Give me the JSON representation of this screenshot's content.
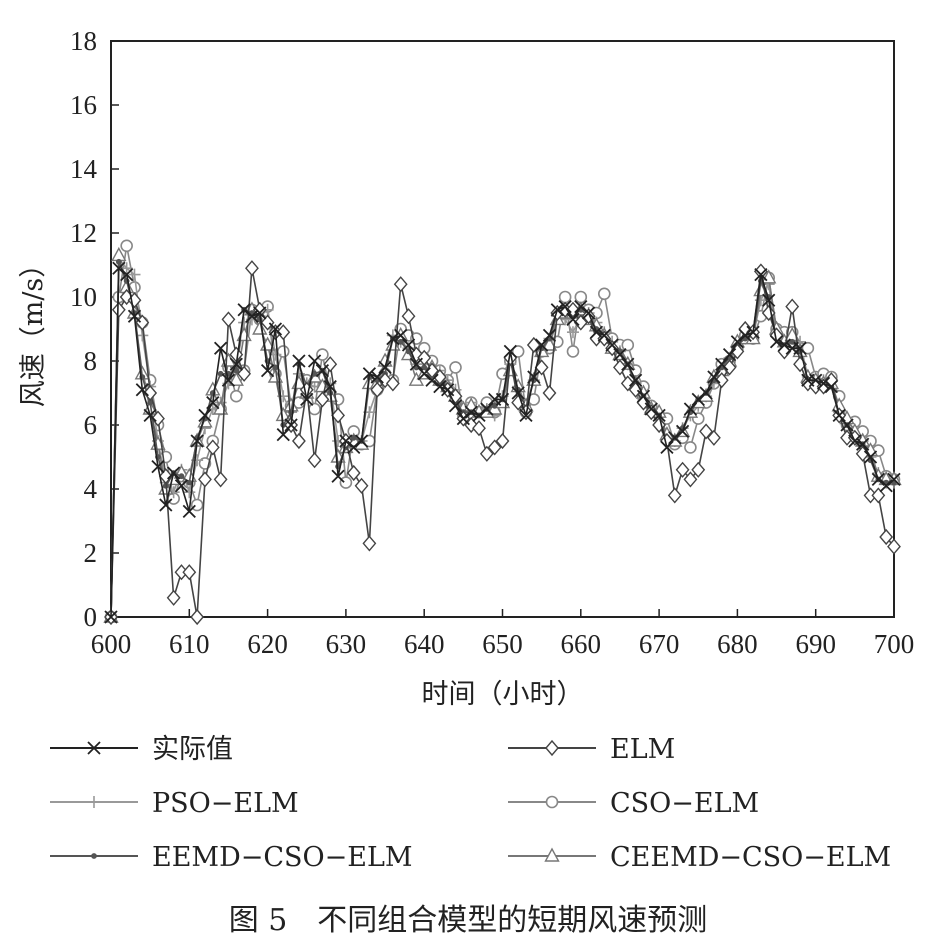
{
  "figure": {
    "caption": "图 5　不同组合模型的短期风速预测"
  },
  "chart_data": {
    "type": "line",
    "xlabel": "时间（小时）",
    "ylabel": "风速（m/s）",
    "xlim": [
      600,
      700
    ],
    "ylim": [
      0,
      18
    ],
    "xticks": [
      600,
      610,
      620,
      630,
      640,
      650,
      660,
      670,
      680,
      690,
      700
    ],
    "yticks": [
      0,
      2,
      4,
      6,
      8,
      10,
      12,
      14,
      16,
      18
    ],
    "grid": false,
    "legend_position": "bottom",
    "x": [
      600,
      601,
      602,
      603,
      604,
      605,
      606,
      607,
      608,
      609,
      610,
      611,
      612,
      613,
      614,
      615,
      616,
      617,
      618,
      619,
      620,
      621,
      622,
      623,
      624,
      625,
      626,
      627,
      628,
      629,
      630,
      631,
      632,
      633,
      634,
      635,
      636,
      637,
      638,
      639,
      640,
      641,
      642,
      643,
      644,
      645,
      646,
      647,
      648,
      649,
      650,
      651,
      652,
      653,
      654,
      655,
      656,
      657,
      658,
      659,
      660,
      661,
      662,
      663,
      664,
      665,
      666,
      667,
      668,
      669,
      670,
      671,
      672,
      673,
      674,
      675,
      676,
      677,
      678,
      679,
      680,
      681,
      682,
      683,
      684,
      685,
      686,
      687,
      688,
      689,
      690,
      691,
      692,
      693,
      694,
      695,
      696,
      697,
      698,
      699,
      700
    ],
    "series": [
      {
        "name": "实际值",
        "color": "#222222",
        "marker": "x",
        "values": [
          0,
          10.9,
          10.7,
          9.4,
          7.1,
          6.3,
          4.7,
          3.5,
          4.5,
          4.1,
          3.3,
          5.5,
          6.3,
          6.7,
          8.4,
          7.4,
          7.9,
          9.6,
          9.4,
          9.5,
          7.7,
          9.0,
          5.7,
          6.0,
          8.0,
          6.8,
          8.0,
          7.7,
          7.2,
          4.4,
          5.5,
          5.3,
          5.5,
          7.6,
          7.5,
          7.8,
          8.7,
          8.8,
          8.5,
          7.9,
          7.6,
          7.4,
          7.2,
          7.1,
          6.6,
          6.2,
          6.4,
          6.3,
          6.5,
          6.8,
          6.8,
          8.3,
          7.0,
          6.3,
          7.5,
          8.5,
          8.8,
          9.6,
          9.7,
          9.3,
          9.7,
          9.5,
          8.9,
          8.8,
          8.5,
          8.2,
          7.9,
          7.4,
          6.9,
          6.5,
          6.3,
          5.3,
          5.6,
          5.8,
          6.5,
          6.8,
          7.0,
          7.5,
          7.9,
          8.2,
          8.6,
          8.8,
          8.9,
          10.7,
          9.9,
          8.6,
          8.5,
          8.4,
          8.4,
          7.4,
          7.4,
          7.3,
          7.2,
          6.3,
          6.0,
          5.5,
          5.4,
          5.0,
          4.3,
          4.1,
          4.3
        ]
      },
      {
        "name": "ELM",
        "color": "#444444",
        "marker": "diamond",
        "values": [
          0,
          9.6,
          10.0,
          9.9,
          9.2,
          7.0,
          6.2,
          4.4,
          0.6,
          1.4,
          1.4,
          0.0,
          4.3,
          5.3,
          4.3,
          9.3,
          8.2,
          7.6,
          10.9,
          9.6,
          9.2,
          8.9,
          8.9,
          6.0,
          5.5,
          7.1,
          4.9,
          6.8,
          7.9,
          6.3,
          5.5,
          4.5,
          4.1,
          2.3,
          7.1,
          7.4,
          7.3,
          10.4,
          9.4,
          8.2,
          8.1,
          7.7,
          7.5,
          7.1,
          6.9,
          6.2,
          6.0,
          5.9,
          5.1,
          5.3,
          5.5,
          8.1,
          6.7,
          6.4,
          8.5,
          7.8,
          7.0,
          9.5,
          9.6,
          9.6,
          9.2,
          9.4,
          8.7,
          8.7,
          8.4,
          7.8,
          7.3,
          7.1,
          6.7,
          6.4,
          6.0,
          5.5,
          3.8,
          4.6,
          4.3,
          4.6,
          5.8,
          5.6,
          7.4,
          7.8,
          8.3,
          9.0,
          8.9,
          10.8,
          9.5,
          8.8,
          8.3,
          9.7,
          7.9,
          7.3,
          7.2,
          7.2,
          7.4,
          6.3,
          5.6,
          5.6,
          5.1,
          3.8,
          3.8,
          2.5,
          2.2
        ]
      },
      {
        "name": "PSO−ELM",
        "color": "#999999",
        "marker": "plus",
        "values": [
          0,
          11.2,
          10.9,
          10.7,
          8.8,
          7.2,
          5.5,
          4.2,
          3.9,
          4.6,
          3.9,
          4.9,
          5.9,
          6.5,
          6.7,
          7.3,
          7.8,
          9.2,
          9.3,
          9.4,
          9.6,
          8.2,
          6.9,
          6.4,
          7.6,
          7.3,
          7.2,
          7.2,
          7.3,
          5.5,
          5.3,
          5.5,
          5.5,
          6.4,
          7.1,
          7.9,
          8.8,
          8.6,
          8.4,
          7.9,
          7.9,
          7.5,
          7.7,
          7.4,
          7.1,
          6.3,
          6.7,
          6.4,
          6.5,
          6.3,
          6.9,
          7.9,
          7.2,
          6.5,
          7.4,
          8.3,
          8.7,
          9.4,
          9.3,
          8.9,
          9.4,
          9.5,
          9.2,
          8.9,
          8.6,
          8.3,
          7.9,
          7.3,
          6.8,
          6.4,
          6.3,
          5.5,
          5.5,
          5.9,
          6.3,
          6.6,
          6.9,
          7.3,
          7.7,
          8.1,
          8.5,
          8.7,
          8.8,
          9.9,
          10.4,
          8.8,
          8.6,
          8.7,
          8.6,
          7.5,
          7.3,
          7.4,
          7.4,
          6.4,
          6.1,
          5.6,
          5.5,
          5.0,
          4.5,
          4.2,
          4.2
        ]
      },
      {
        "name": "CSO−ELM",
        "color": "#888888",
        "marker": "circle",
        "values": [
          0,
          10.0,
          11.6,
          10.3,
          9.2,
          7.4,
          6.0,
          5.0,
          3.7,
          4.4,
          4.2,
          3.5,
          4.8,
          5.5,
          6.5,
          7.8,
          6.9,
          7.7,
          9.6,
          9.3,
          9.7,
          7.6,
          8.3,
          6.6,
          6.7,
          7.4,
          6.5,
          8.2,
          7.0,
          6.8,
          4.2,
          5.8,
          5.4,
          5.5,
          7.1,
          7.6,
          7.4,
          9.0,
          8.8,
          8.7,
          8.4,
          8.0,
          7.7,
          7.4,
          7.8,
          6.3,
          6.7,
          6.4,
          6.7,
          6.4,
          7.6,
          8.0,
          8.3,
          6.4,
          6.8,
          8.3,
          8.4,
          8.6,
          10.0,
          8.3,
          10.0,
          9.6,
          9.5,
          10.1,
          8.7,
          8.5,
          8.5,
          7.7,
          7.2,
          6.6,
          6.3,
          6.2,
          5.4,
          5.6,
          5.3,
          6.2,
          6.7,
          7.3,
          7.9,
          8.0,
          8.4,
          8.8,
          8.7,
          9.4,
          10.6,
          9.0,
          8.9,
          8.9,
          8.4,
          8.4,
          7.5,
          7.6,
          7.5,
          6.9,
          6.0,
          6.1,
          5.8,
          5.5,
          5.2,
          4.4,
          4.3
        ]
      },
      {
        "name": "EEMD−CSO−ELM",
        "color": "#555555",
        "marker": "dot",
        "values": [
          0,
          11.1,
          10.5,
          9.5,
          7.5,
          6.7,
          5.0,
          4.1,
          4.5,
          4.4,
          4.2,
          5.6,
          6.2,
          7.0,
          7.6,
          7.6,
          7.7,
          9.6,
          9.5,
          9.3,
          8.0,
          7.8,
          6.0,
          6.4,
          7.9,
          7.2,
          7.6,
          7.7,
          7.0,
          4.7,
          5.3,
          5.6,
          5.5,
          7.5,
          7.4,
          7.6,
          8.7,
          8.6,
          8.3,
          7.8,
          7.8,
          7.6,
          7.3,
          7.2,
          6.7,
          6.4,
          6.4,
          6.3,
          6.5,
          6.6,
          6.8,
          8.0,
          7.1,
          6.5,
          7.4,
          8.4,
          8.7,
          9.5,
          9.6,
          9.4,
          9.6,
          9.4,
          9.0,
          8.7,
          8.5,
          8.3,
          7.9,
          7.3,
          6.9,
          6.5,
          6.3,
          5.5,
          5.6,
          5.9,
          6.4,
          6.8,
          7.0,
          7.4,
          7.8,
          8.1,
          8.5,
          8.7,
          8.8,
          10.5,
          10.0,
          8.7,
          8.5,
          8.6,
          8.3,
          7.4,
          7.3,
          7.2,
          7.2,
          6.3,
          6.0,
          5.6,
          5.4,
          4.9,
          4.3,
          4.2,
          4.2
        ]
      },
      {
        "name": "CEEMD−CSO−ELM",
        "color": "#777777",
        "marker": "triangle",
        "values": [
          0,
          11.3,
          10.3,
          9.5,
          7.6,
          6.5,
          5.4,
          4.0,
          4.3,
          4.5,
          4.4,
          5.5,
          6.1,
          7.1,
          6.5,
          8.0,
          7.4,
          8.8,
          9.6,
          9.0,
          8.5,
          7.5,
          6.3,
          6.6,
          7.3,
          7.0,
          7.5,
          7.2,
          6.9,
          5.0,
          5.3,
          5.5,
          5.4,
          7.3,
          7.3,
          8.0,
          8.5,
          8.8,
          8.2,
          7.4,
          7.6,
          7.8,
          7.4,
          7.2,
          6.9,
          6.5,
          6.6,
          6.4,
          6.4,
          6.5,
          6.7,
          7.7,
          7.2,
          6.6,
          7.4,
          8.3,
          8.5,
          9.3,
          9.5,
          9.5,
          9.6,
          9.3,
          9.1,
          8.8,
          8.4,
          8.2,
          7.9,
          7.3,
          7.0,
          6.5,
          6.4,
          5.7,
          5.5,
          5.8,
          6.4,
          6.7,
          6.9,
          7.5,
          7.7,
          8.0,
          8.6,
          8.7,
          8.7,
          10.2,
          10.6,
          9.0,
          8.6,
          8.8,
          8.3,
          7.5,
          7.4,
          7.3,
          7.3,
          6.6,
          6.2,
          5.8,
          5.5,
          5.2,
          4.4,
          4.3,
          4.3
        ]
      }
    ]
  }
}
